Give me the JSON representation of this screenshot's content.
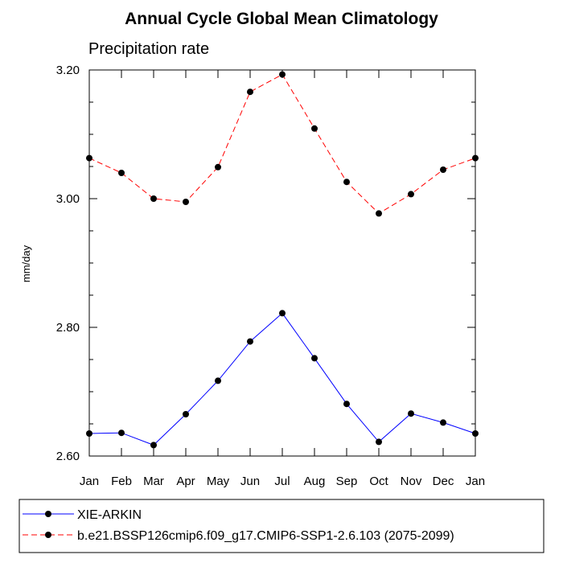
{
  "chart_data": {
    "type": "line",
    "title": "Annual Cycle Global Mean Climatology",
    "subtitle": "Precipitation rate",
    "xlabel": "",
    "ylabel": "mm/day",
    "categories": [
      "Jan",
      "Feb",
      "Mar",
      "Apr",
      "May",
      "Jun",
      "Jul",
      "Aug",
      "Sep",
      "Oct",
      "Nov",
      "Dec",
      "Jan"
    ],
    "y_ticks": [
      "2.60",
      "2.80",
      "3.00",
      "3.20"
    ],
    "ylim": [
      2.6,
      3.2
    ],
    "grid": false,
    "legend_position": "bottom",
    "series": [
      {
        "name": "XIE-ARKIN",
        "color": "#0000ff",
        "line_style": "solid",
        "marker": "filled-circle",
        "values": [
          2.635,
          2.636,
          2.617,
          2.665,
          2.717,
          2.778,
          2.822,
          2.752,
          2.681,
          2.622,
          2.666,
          2.652,
          2.635
        ]
      },
      {
        "name": "b.e21.BSSP126cmip6.f09_g17.CMIP6-SSP1-2.6.103 (2075-2099)",
        "color": "#ff0000",
        "line_style": "dashed",
        "marker": "filled-circle",
        "values": [
          3.063,
          3.04,
          3.0,
          2.995,
          3.049,
          3.166,
          3.193,
          3.109,
          3.026,
          2.977,
          3.007,
          3.045,
          3.063
        ]
      }
    ]
  }
}
